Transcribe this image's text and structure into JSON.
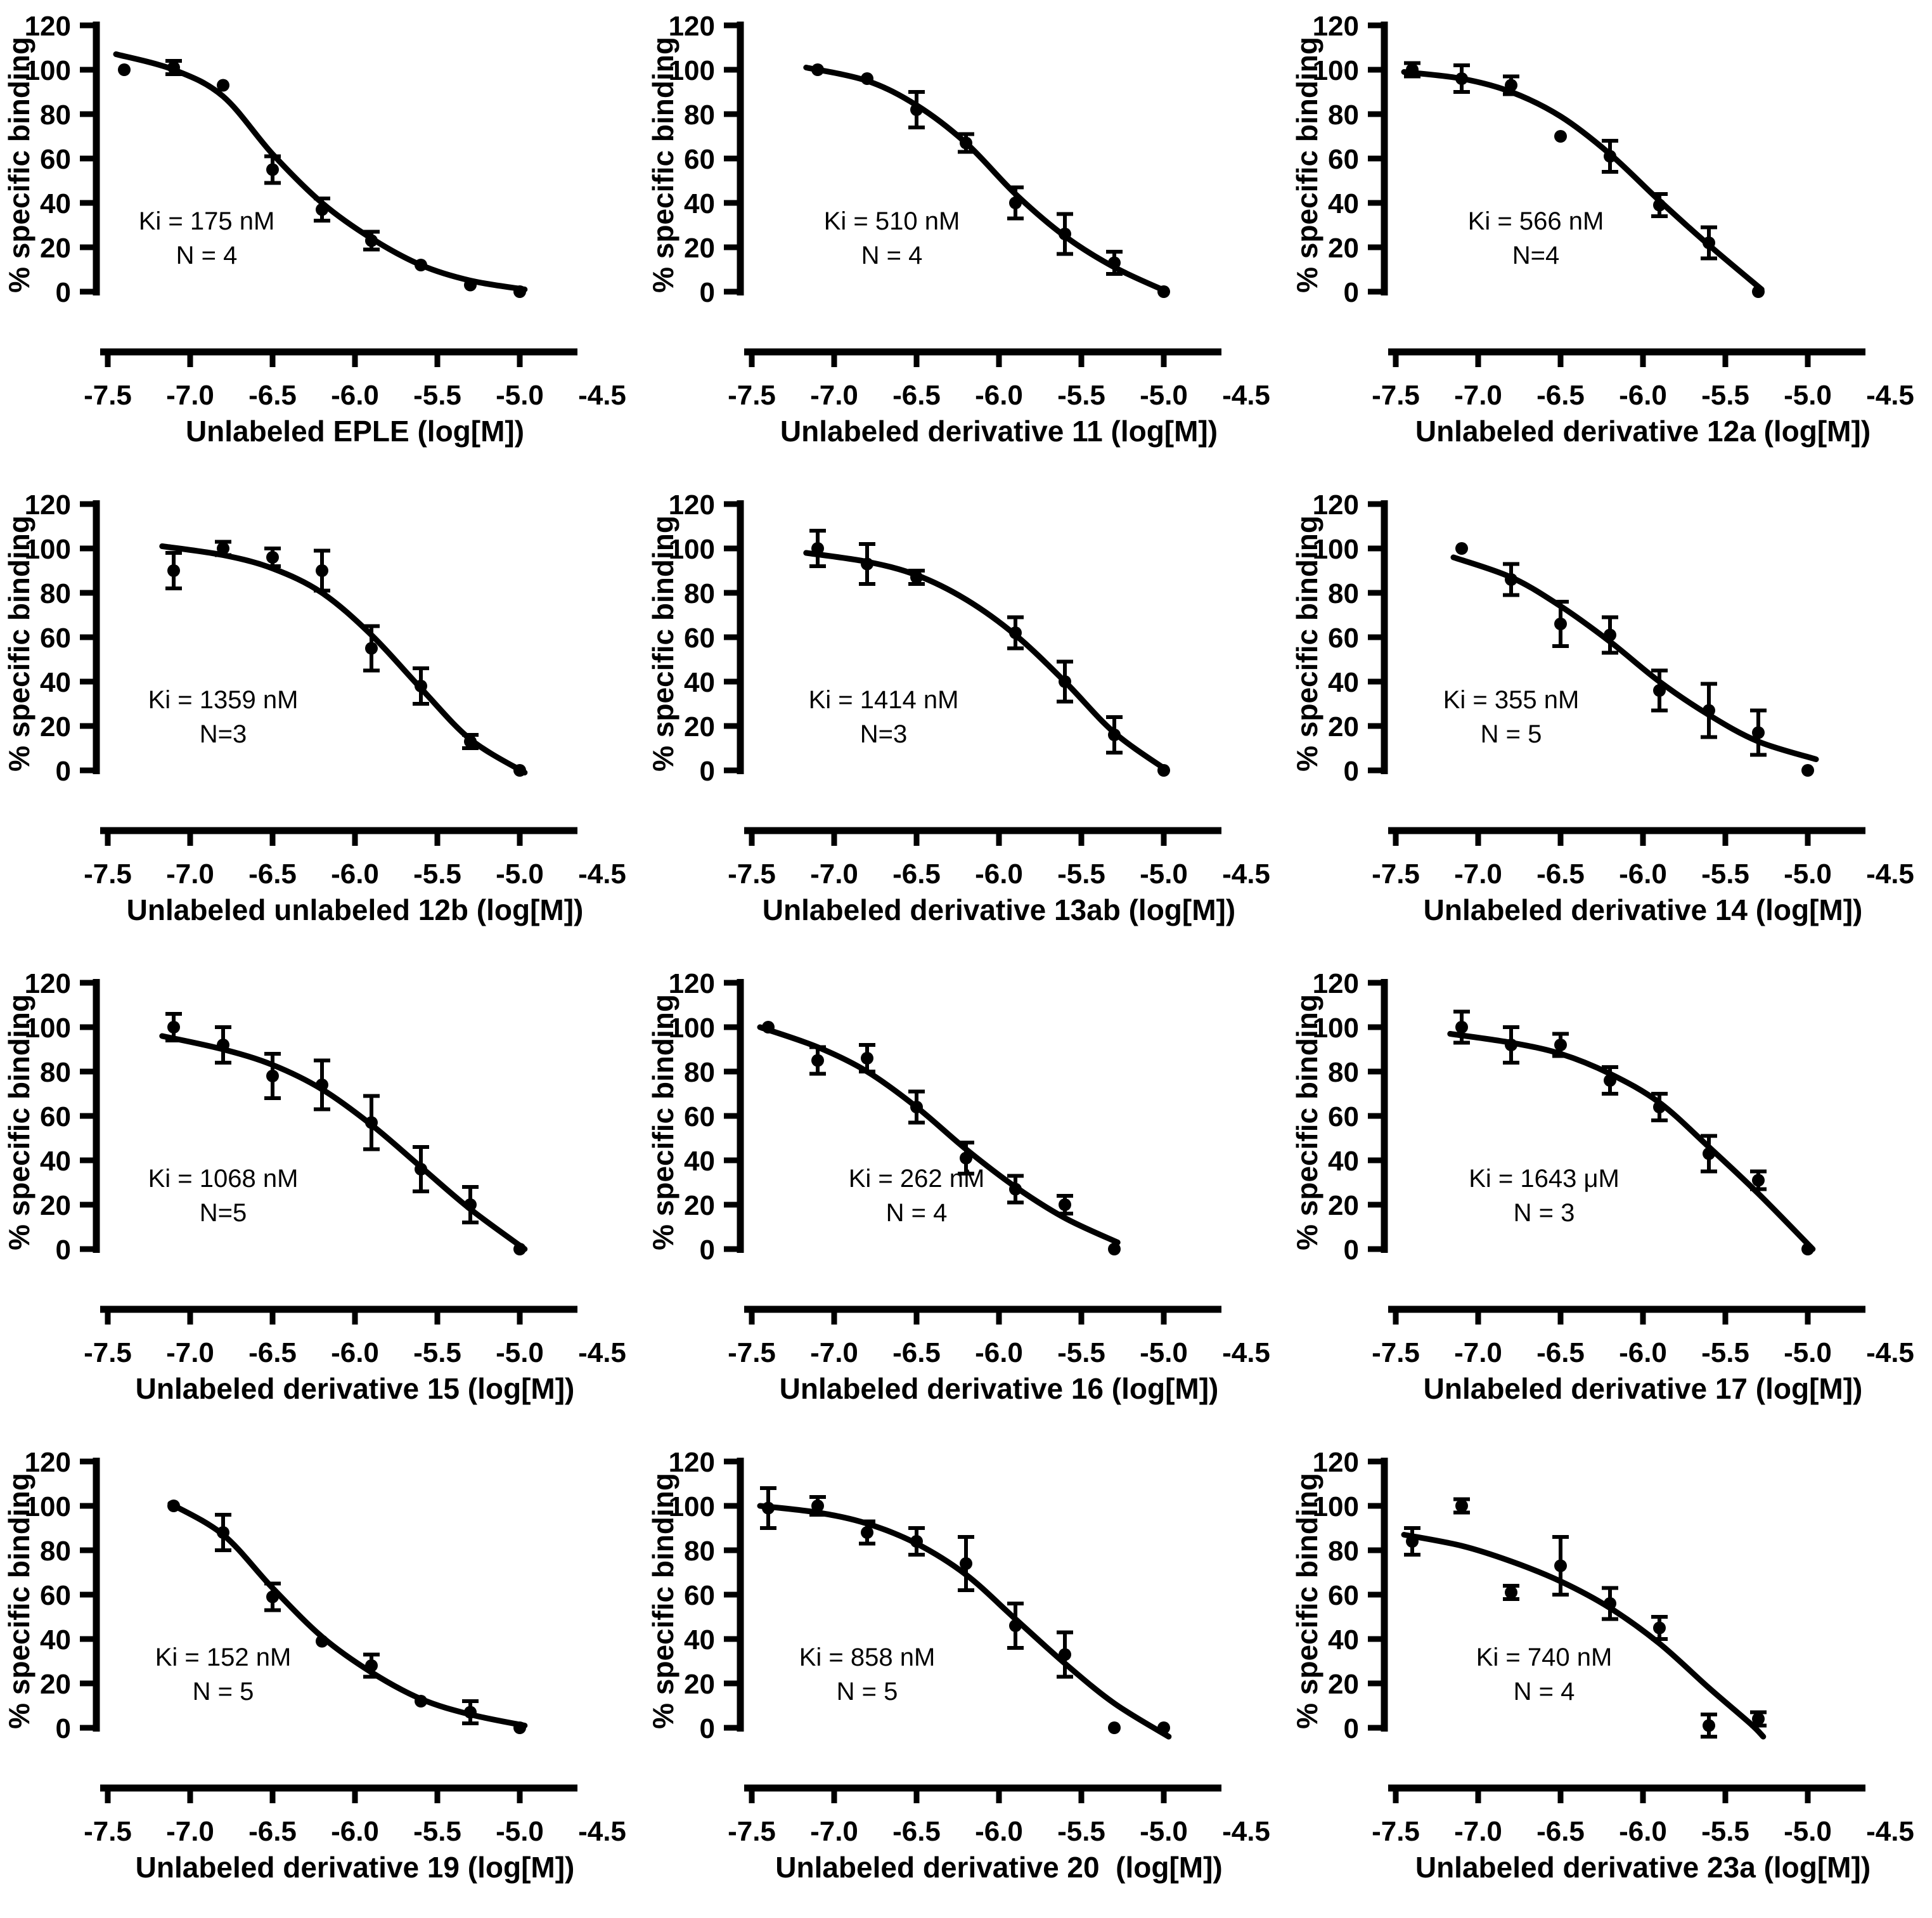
{
  "figure": {
    "description": "Competition radioligand binding curves, 12 panels",
    "background_color": "#ffffff",
    "ink_color": "#000000"
  },
  "chart_data": {
    "type": "line",
    "layout": {
      "rows": 4,
      "cols": 3,
      "grid": false,
      "legend": "none"
    },
    "ylabel": "% specific binding",
    "ylim": [
      0,
      120
    ],
    "xlim": [
      -7.75,
      -4.45
    ],
    "y_tick_values": [
      0,
      20,
      40,
      60,
      80,
      100,
      120
    ],
    "y_tick_labels": [
      "0",
      "20",
      "40",
      "60",
      "80",
      "100",
      "120"
    ],
    "x_tick_values": [
      -7.5,
      -7.0,
      -6.5,
      -6.0,
      -5.5,
      -5.0,
      -4.5
    ],
    "x_tick_labels": [
      "-7.5",
      "-7.0",
      "-6.5",
      "-6.0",
      "-5.5",
      "-5.0",
      "-4.5"
    ],
    "x_ticks_marked": [
      -7.5,
      -7.0,
      -6.5,
      -6.0,
      -5.5,
      -5.0
    ],
    "series_style": {
      "marker": "filled-circle",
      "error_bars": "sd-caps",
      "fit": "sigmoidal-dose-response"
    },
    "panels": [
      {
        "id": "eple",
        "xlabel": "Unlabeled EPLE (log[M])",
        "ki": "Ki = 175 nM",
        "n": "N = 4",
        "ann_x": -6.9,
        "points": [
          [
            -7.4,
            100,
            0
          ],
          [
            -7.1,
            101,
            3
          ],
          [
            -6.8,
            93,
            0
          ],
          [
            -6.5,
            55,
            6
          ],
          [
            -6.2,
            37,
            5
          ],
          [
            -5.9,
            23,
            4
          ],
          [
            -5.6,
            12,
            0
          ],
          [
            -5.3,
            3,
            0
          ],
          [
            -5.0,
            0,
            0
          ]
        ],
        "curve": [
          [
            -7.45,
            107
          ],
          [
            -7.1,
            100
          ],
          [
            -6.8,
            88
          ],
          [
            -6.5,
            62
          ],
          [
            -6.2,
            40
          ],
          [
            -5.9,
            24
          ],
          [
            -5.6,
            12
          ],
          [
            -5.3,
            5
          ],
          [
            -4.97,
            1
          ]
        ]
      },
      {
        "id": "derivative-11",
        "xlabel": "Unlabeled derivative 11 (log[M])",
        "ki": "Ki = 510 nM",
        "n": "N = 4",
        "ann_x": -6.65,
        "points": [
          [
            -7.1,
            100,
            0
          ],
          [
            -6.8,
            96,
            0
          ],
          [
            -6.5,
            82,
            8
          ],
          [
            -6.2,
            67,
            4
          ],
          [
            -5.9,
            40,
            7
          ],
          [
            -5.6,
            26,
            9
          ],
          [
            -5.3,
            13,
            5
          ],
          [
            -5.0,
            0,
            0
          ]
        ],
        "curve": [
          [
            -7.17,
            101
          ],
          [
            -6.8,
            95
          ],
          [
            -6.5,
            84
          ],
          [
            -6.2,
            67
          ],
          [
            -5.9,
            44
          ],
          [
            -5.6,
            25
          ],
          [
            -5.3,
            11
          ],
          [
            -4.98,
            0
          ]
        ]
      },
      {
        "id": "derivative-12a",
        "xlabel": "Unlabeled derivative 12a (log[M])",
        "ki": "Ki = 566 nM",
        "n": "N=4",
        "ann_x": -6.65,
        "points": [
          [
            -7.4,
            100,
            3
          ],
          [
            -7.1,
            96,
            6
          ],
          [
            -6.8,
            93,
            4
          ],
          [
            -6.5,
            70,
            0
          ],
          [
            -6.2,
            61,
            7
          ],
          [
            -5.9,
            39,
            5
          ],
          [
            -5.6,
            22,
            7
          ],
          [
            -5.3,
            0,
            0
          ]
        ],
        "curve": [
          [
            -7.45,
            99
          ],
          [
            -7.1,
            96
          ],
          [
            -6.8,
            90
          ],
          [
            -6.5,
            79
          ],
          [
            -6.2,
            62
          ],
          [
            -5.9,
            41
          ],
          [
            -5.6,
            21
          ],
          [
            -5.28,
            1
          ]
        ]
      },
      {
        "id": "unlabeled-12b",
        "xlabel": "Unlabeled unlabeled 12b (log[M])",
        "ki": "Ki = 1359 nM",
        "n": "N=3",
        "ann_x": -6.8,
        "points": [
          [
            -7.1,
            90,
            8
          ],
          [
            -6.8,
            100,
            3
          ],
          [
            -6.5,
            96,
            4
          ],
          [
            -6.2,
            90,
            9
          ],
          [
            -5.9,
            55,
            10
          ],
          [
            -5.6,
            38,
            8
          ],
          [
            -5.3,
            13,
            3
          ],
          [
            -5.0,
            0,
            0
          ]
        ],
        "curve": [
          [
            -7.17,
            101
          ],
          [
            -6.8,
            97
          ],
          [
            -6.5,
            91
          ],
          [
            -6.2,
            80
          ],
          [
            -5.9,
            61
          ],
          [
            -5.6,
            37
          ],
          [
            -5.3,
            14
          ],
          [
            -4.97,
            -1
          ]
        ]
      },
      {
        "id": "derivative-13ab",
        "xlabel": "Unlabeled derivative 13ab (log[M])",
        "ki": "Ki = 1414 nM",
        "n": "N=3",
        "ann_x": -6.7,
        "points": [
          [
            -7.1,
            100,
            8
          ],
          [
            -6.8,
            93,
            9
          ],
          [
            -6.5,
            87,
            3
          ],
          [
            -5.9,
            62,
            7
          ],
          [
            -5.6,
            40,
            9
          ],
          [
            -5.3,
            16,
            8
          ],
          [
            -5.0,
            0,
            0
          ]
        ],
        "curve": [
          [
            -7.17,
            98
          ],
          [
            -6.8,
            94
          ],
          [
            -6.5,
            88
          ],
          [
            -6.2,
            77
          ],
          [
            -5.9,
            61
          ],
          [
            -5.6,
            40
          ],
          [
            -5.3,
            17
          ],
          [
            -4.98,
            0
          ]
        ]
      },
      {
        "id": "derivative-14",
        "xlabel": "Unlabeled derivative 14 (log[M])",
        "ki": "Ki = 355 nM",
        "n": "N = 5",
        "ann_x": -6.8,
        "points": [
          [
            -7.1,
            100,
            0
          ],
          [
            -6.8,
            86,
            7
          ],
          [
            -6.5,
            66,
            10
          ],
          [
            -6.2,
            61,
            8
          ],
          [
            -5.9,
            36,
            9
          ],
          [
            -5.6,
            27,
            12
          ],
          [
            -5.3,
            17,
            10
          ],
          [
            -5.0,
            0,
            0
          ]
        ],
        "curve": [
          [
            -7.15,
            96
          ],
          [
            -6.8,
            87
          ],
          [
            -6.5,
            74
          ],
          [
            -6.2,
            58
          ],
          [
            -5.9,
            40
          ],
          [
            -5.6,
            25
          ],
          [
            -5.3,
            13
          ],
          [
            -4.95,
            5
          ]
        ]
      },
      {
        "id": "derivative-15",
        "xlabel": "Unlabeled derivative 15 (log[M])",
        "ki": "Ki = 1068 nM",
        "n": "N=5",
        "ann_x": -6.8,
        "points": [
          [
            -7.1,
            100,
            6
          ],
          [
            -6.8,
            92,
            8
          ],
          [
            -6.5,
            78,
            10
          ],
          [
            -6.2,
            74,
            11
          ],
          [
            -5.9,
            57,
            12
          ],
          [
            -5.6,
            36,
            10
          ],
          [
            -5.3,
            20,
            8
          ],
          [
            -5.0,
            0,
            0
          ]
        ],
        "curve": [
          [
            -7.17,
            96
          ],
          [
            -6.8,
            90
          ],
          [
            -6.5,
            83
          ],
          [
            -6.2,
            72
          ],
          [
            -5.9,
            56
          ],
          [
            -5.6,
            37
          ],
          [
            -5.3,
            18
          ],
          [
            -4.97,
            0
          ]
        ]
      },
      {
        "id": "derivative-16",
        "xlabel": "Unlabeled derivative 16 (log[M])",
        "ki": "Ki = 262 nM",
        "n": "N = 4",
        "ann_x": -6.5,
        "points": [
          [
            -7.4,
            100,
            0
          ],
          [
            -7.1,
            85,
            6
          ],
          [
            -6.8,
            86,
            6
          ],
          [
            -6.5,
            64,
            7
          ],
          [
            -6.2,
            41,
            7
          ],
          [
            -5.9,
            27,
            6
          ],
          [
            -5.6,
            20,
            4
          ],
          [
            -5.3,
            0,
            0
          ]
        ],
        "curve": [
          [
            -7.45,
            100
          ],
          [
            -7.1,
            91
          ],
          [
            -6.8,
            80
          ],
          [
            -6.5,
            64
          ],
          [
            -6.2,
            45
          ],
          [
            -5.9,
            28
          ],
          [
            -5.6,
            14
          ],
          [
            -5.28,
            3
          ]
        ]
      },
      {
        "id": "derivative-17",
        "xlabel": "Unlabeled derivative 17 (log[M])",
        "ki": "Ki = 1643 μM",
        "n": "N = 3",
        "ann_x": -6.6,
        "points": [
          [
            -7.1,
            100,
            7
          ],
          [
            -6.8,
            92,
            8
          ],
          [
            -6.5,
            92,
            5
          ],
          [
            -6.2,
            76,
            6
          ],
          [
            -5.9,
            64,
            6
          ],
          [
            -5.6,
            43,
            8
          ],
          [
            -5.3,
            31,
            4
          ],
          [
            -5.0,
            0,
            0
          ]
        ],
        "curve": [
          [
            -7.17,
            97
          ],
          [
            -6.8,
            93
          ],
          [
            -6.5,
            88
          ],
          [
            -6.2,
            79
          ],
          [
            -5.9,
            66
          ],
          [
            -5.6,
            46
          ],
          [
            -5.3,
            25
          ],
          [
            -4.97,
            0
          ]
        ]
      },
      {
        "id": "derivative-19",
        "xlabel": "Unlabeled derivative 19 (log[M])",
        "ki": "Ki = 152 nM",
        "n": "N = 5",
        "ann_x": -6.8,
        "points": [
          [
            -7.1,
            100,
            0
          ],
          [
            -6.8,
            88,
            8
          ],
          [
            -6.5,
            59,
            6
          ],
          [
            -6.2,
            39,
            0
          ],
          [
            -5.9,
            28,
            5
          ],
          [
            -5.6,
            12,
            0
          ],
          [
            -5.3,
            7,
            5
          ],
          [
            -5.0,
            0,
            0
          ]
        ],
        "curve": [
          [
            -7.12,
            101
          ],
          [
            -6.8,
            87
          ],
          [
            -6.5,
            63
          ],
          [
            -6.2,
            41
          ],
          [
            -5.9,
            25
          ],
          [
            -5.6,
            13
          ],
          [
            -5.3,
            6
          ],
          [
            -4.97,
            1
          ]
        ]
      },
      {
        "id": "derivative-20",
        "xlabel": "Unlabeled derivative 20  (log[M])",
        "ki": "Ki = 858 nM",
        "n": "N = 5",
        "ann_x": -6.8,
        "points": [
          [
            -7.4,
            99,
            9
          ],
          [
            -7.1,
            100,
            4
          ],
          [
            -6.8,
            88,
            5
          ],
          [
            -6.5,
            84,
            6
          ],
          [
            -6.2,
            74,
            12
          ],
          [
            -5.9,
            46,
            10
          ],
          [
            -5.6,
            33,
            10
          ],
          [
            -5.3,
            0,
            0
          ],
          [
            -5.0,
            0,
            0
          ]
        ],
        "curve": [
          [
            -7.45,
            100
          ],
          [
            -7.1,
            97
          ],
          [
            -6.8,
            92
          ],
          [
            -6.5,
            83
          ],
          [
            -6.2,
            69
          ],
          [
            -5.9,
            49
          ],
          [
            -5.6,
            29
          ],
          [
            -5.3,
            11
          ],
          [
            -4.97,
            -4
          ]
        ]
      },
      {
        "id": "derivative-23a",
        "xlabel": "Unlabeled derivative 23a (log[M])",
        "ki": "Ki = 740 nM",
        "n": "N = 4",
        "ann_x": -6.6,
        "points": [
          [
            -7.4,
            84,
            6
          ],
          [
            -7.1,
            100,
            3
          ],
          [
            -6.8,
            61,
            3
          ],
          [
            -6.5,
            73,
            13
          ],
          [
            -6.2,
            56,
            7
          ],
          [
            -5.9,
            45,
            5
          ],
          [
            -5.6,
            1,
            5
          ],
          [
            -5.3,
            4,
            3
          ]
        ],
        "curve": [
          [
            -7.45,
            87
          ],
          [
            -7.1,
            82
          ],
          [
            -6.8,
            75
          ],
          [
            -6.5,
            66
          ],
          [
            -6.2,
            54
          ],
          [
            -5.9,
            38
          ],
          [
            -5.6,
            18
          ],
          [
            -5.35,
            2
          ],
          [
            -5.27,
            -4
          ]
        ]
      }
    ]
  }
}
